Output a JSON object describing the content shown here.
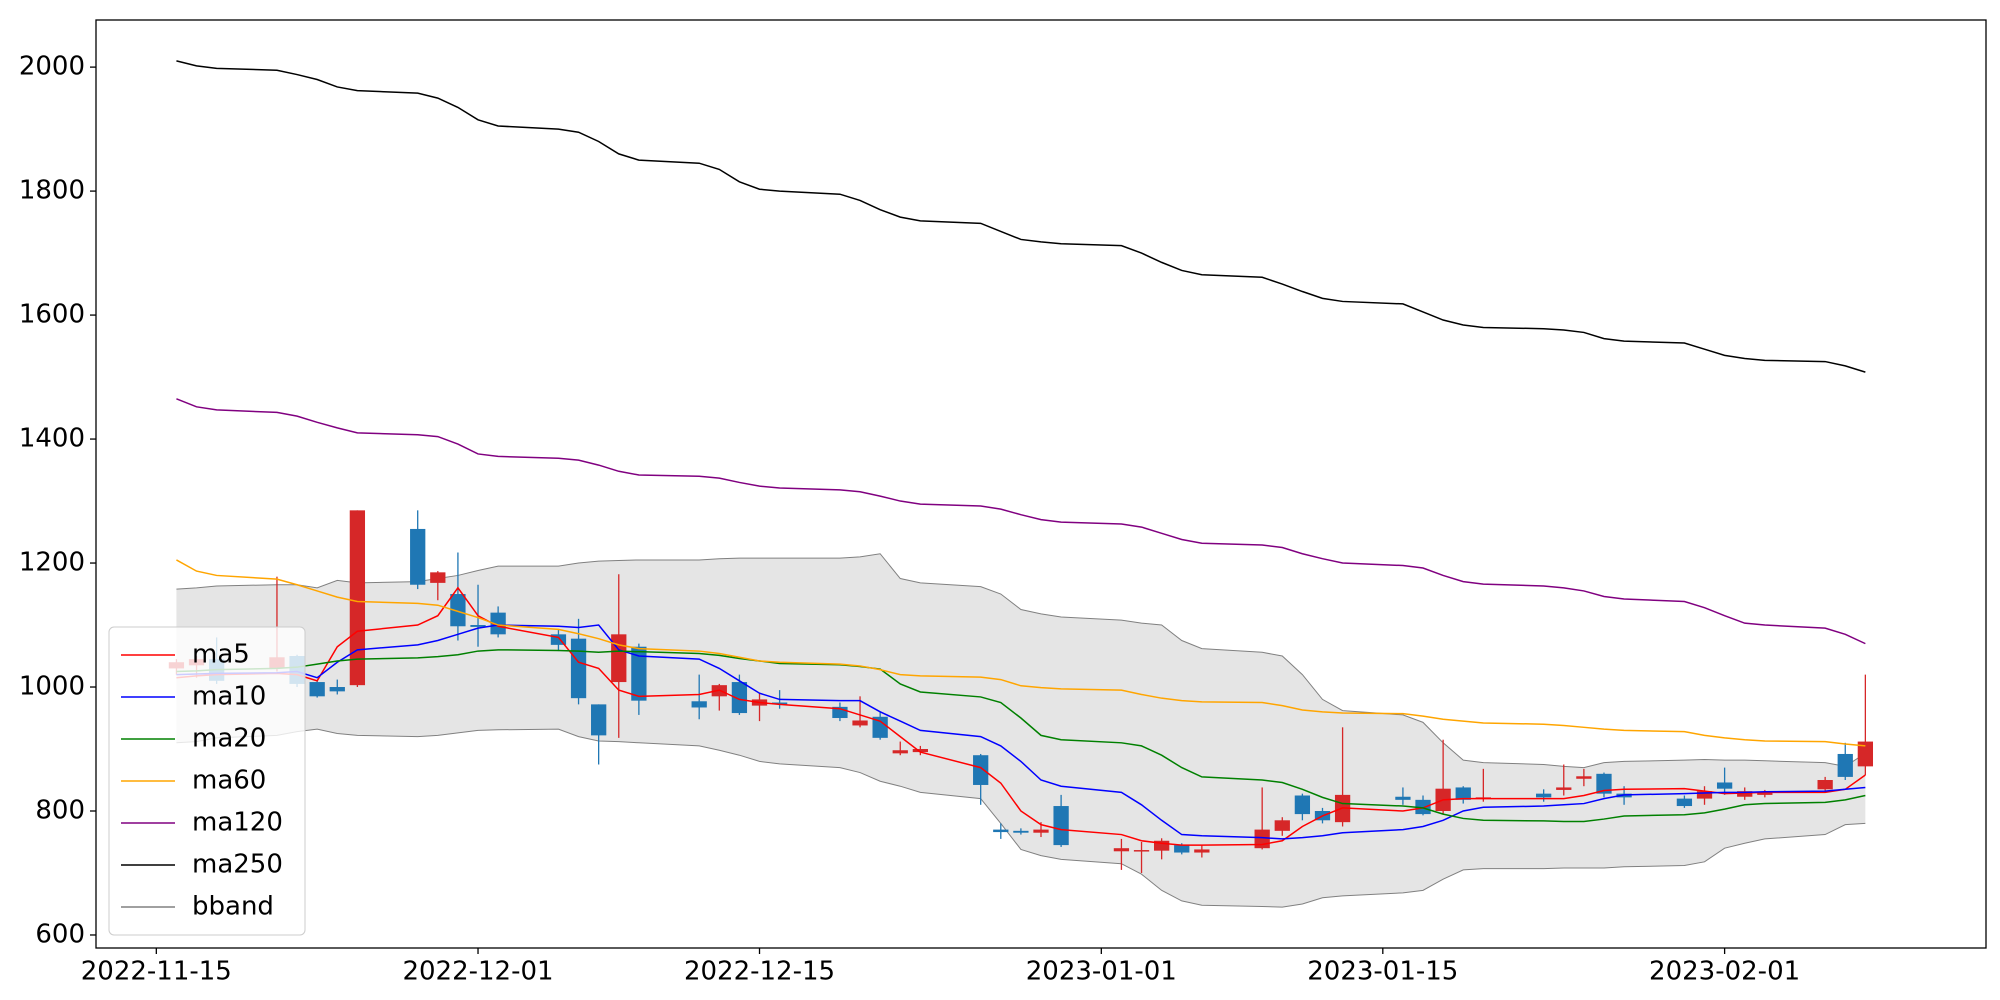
{
  "chart_data": {
    "type": "candlestick",
    "x": [
      "2022-11-16",
      "2022-11-17",
      "2022-11-18",
      "2022-11-21",
      "2022-11-22",
      "2022-11-23",
      "2022-11-24",
      "2022-11-25",
      "2022-11-28",
      "2022-11-29",
      "2022-11-30",
      "2022-12-01",
      "2022-12-02",
      "2022-12-05",
      "2022-12-06",
      "2022-12-07",
      "2022-12-08",
      "2022-12-09",
      "2022-12-12",
      "2022-12-13",
      "2022-12-14",
      "2022-12-15",
      "2022-12-16",
      "2022-12-19",
      "2022-12-20",
      "2022-12-21",
      "2022-12-22",
      "2022-12-23",
      "2022-12-26",
      "2022-12-27",
      "2022-12-28",
      "2022-12-29",
      "2022-12-30",
      "2023-01-02",
      "2023-01-03",
      "2023-01-04",
      "2023-01-05",
      "2023-01-06",
      "2023-01-09",
      "2023-01-10",
      "2023-01-11",
      "2023-01-12",
      "2023-01-13",
      "2023-01-16",
      "2023-01-17",
      "2023-01-18",
      "2023-01-19",
      "2023-01-20",
      "2023-01-23",
      "2023-01-24",
      "2023-01-25",
      "2023-01-26",
      "2023-01-27",
      "2023-01-30",
      "2023-01-31",
      "2023-02-01",
      "2023-02-02",
      "2023-02-03",
      "2023-02-06",
      "2023-02-07",
      "2023-02-08"
    ],
    "open": [
      1030,
      1035,
      1045,
      1030,
      1050,
      1008,
      1000,
      1003,
      1255,
      1168,
      1150,
      1100,
      1120,
      1085,
      1078,
      972,
      1008,
      1065,
      977,
      985,
      1008,
      970,
      975,
      968,
      938,
      952,
      893,
      895,
      890,
      770,
      768,
      765,
      808,
      735,
      735,
      736,
      745,
      733,
      740,
      768,
      825,
      800,
      782,
      823,
      818,
      800,
      838,
      820,
      828,
      834,
      852,
      860,
      828,
      820,
      820,
      846,
      823,
      826,
      835,
      892,
      872
    ],
    "high": [
      1045,
      1050,
      1080,
      1178,
      1052,
      1010,
      1012,
      1285,
      1285,
      1187,
      1217,
      1165,
      1130,
      1092,
      1110,
      972,
      1182,
      1070,
      1020,
      1005,
      1020,
      990,
      995,
      975,
      985,
      960,
      912,
      905,
      892,
      780,
      772,
      782,
      826,
      755,
      750,
      756,
      748,
      745,
      838,
      790,
      828,
      805,
      935,
      838,
      825,
      915,
      840,
      868,
      835,
      875,
      868,
      862,
      840,
      825,
      840,
      870,
      838,
      834,
      855,
      910,
      1020
    ],
    "low": [
      1020,
      1015,
      1005,
      1025,
      1000,
      983,
      988,
      1000,
      1158,
      1140,
      1075,
      1065,
      1080,
      1058,
      972,
      875,
      918,
      955,
      948,
      962,
      955,
      945,
      965,
      945,
      935,
      915,
      890,
      890,
      810,
      755,
      762,
      758,
      742,
      705,
      700,
      722,
      730,
      725,
      738,
      760,
      785,
      780,
      775,
      810,
      793,
      795,
      812,
      815,
      815,
      825,
      840,
      822,
      810,
      805,
      810,
      826,
      818,
      822,
      830,
      850,
      858
    ],
    "close": [
      1040,
      1045,
      1010,
      1048,
      1005,
      985,
      993,
      1285,
      1165,
      1185,
      1098,
      1097,
      1085,
      1068,
      982,
      922,
      1085,
      978,
      967,
      1003,
      958,
      980,
      972,
      950,
      946,
      918,
      898,
      900,
      842,
      766,
      765,
      770,
      745,
      740,
      737,
      752,
      733,
      738,
      770,
      785,
      795,
      785,
      826,
      818,
      795,
      836,
      818,
      822,
      822,
      838,
      856,
      828,
      822,
      808,
      832,
      836,
      832,
      829,
      850,
      855,
      912
    ],
    "up_color": "#d62728",
    "down_color": "#1f77b4",
    "series": [
      {
        "name": "ma5",
        "color": "#ff0000",
        "values": [
          1015,
          1018,
          1020,
          1022,
          1020,
          1010,
          1065,
          1090,
          1100,
          1115,
          1160,
          1115,
          1098,
          1080,
          1040,
          1030,
          995,
          985,
          988,
          995,
          980,
          975,
          972,
          965,
          955,
          945,
          920,
          895,
          870,
          845,
          800,
          778,
          770,
          762,
          752,
          748,
          745,
          745,
          746,
          752,
          775,
          792,
          805,
          800,
          805,
          818,
          820,
          820,
          820,
          820,
          825,
          833,
          835,
          836,
          832,
          828,
          829,
          830,
          830,
          835,
          858
        ]
      },
      {
        "name": "ma10",
        "color": "#0000ff",
        "values": [
          1020,
          1021,
          1022,
          1023,
          1025,
          1015,
          1040,
          1060,
          1068,
          1075,
          1085,
          1095,
          1100,
          1098,
          1096,
          1100,
          1060,
          1050,
          1045,
          1030,
          1010,
          990,
          980,
          978,
          978,
          960,
          945,
          930,
          920,
          905,
          880,
          850,
          840,
          830,
          810,
          785,
          762,
          760,
          757,
          755,
          757,
          760,
          765,
          770,
          775,
          785,
          800,
          806,
          808,
          810,
          812,
          820,
          826,
          828,
          829,
          830,
          830,
          831,
          832,
          835,
          838
        ]
      },
      {
        "name": "ma20",
        "color": "#008000",
        "values": [
          1025,
          1026,
          1028,
          1030,
          1032,
          1037,
          1042,
          1045,
          1047,
          1049,
          1052,
          1058,
          1060,
          1059,
          1058,
          1056,
          1058,
          1057,
          1054,
          1051,
          1046,
          1042,
          1038,
          1036,
          1033,
          1029,
          1005,
          992,
          984,
          975,
          950,
          922,
          915,
          910,
          905,
          890,
          870,
          855,
          850,
          846,
          835,
          822,
          812,
          808,
          805,
          795,
          788,
          785,
          784,
          783,
          783,
          787,
          792,
          794,
          797,
          803,
          810,
          812,
          814,
          818,
          825
        ]
      },
      {
        "name": "ma60",
        "color": "#ffa500",
        "values": [
          1205,
          1187,
          1180,
          1174,
          1165,
          1155,
          1145,
          1138,
          1135,
          1132,
          1122,
          1112,
          1100,
          1093,
          1086,
          1078,
          1068,
          1062,
          1058,
          1054,
          1048,
          1042,
          1040,
          1037,
          1034,
          1028,
          1020,
          1018,
          1016,
          1012,
          1002,
          999,
          997,
          995,
          988,
          982,
          978,
          976,
          975,
          970,
          963,
          960,
          958,
          957,
          953,
          948,
          945,
          942,
          940,
          938,
          935,
          932,
          930,
          928,
          922,
          918,
          915,
          913,
          912,
          908,
          905
        ]
      },
      {
        "name": "ma120",
        "color": "#800080",
        "values": [
          1465,
          1452,
          1447,
          1443,
          1437,
          1427,
          1418,
          1410,
          1407,
          1404,
          1392,
          1376,
          1372,
          1369,
          1366,
          1358,
          1348,
          1342,
          1340,
          1337,
          1330,
          1324,
          1321,
          1318,
          1315,
          1308,
          1300,
          1295,
          1292,
          1287,
          1278,
          1270,
          1266,
          1263,
          1258,
          1248,
          1238,
          1232,
          1229,
          1225,
          1215,
          1207,
          1200,
          1196,
          1192,
          1180,
          1170,
          1166,
          1163,
          1160,
          1155,
          1146,
          1142,
          1138,
          1128,
          1115,
          1103,
          1100,
          1095,
          1085,
          1070
        ]
      },
      {
        "name": "ma250",
        "color": "#000000",
        "values": [
          2010,
          2002,
          1998,
          1995,
          1988,
          1980,
          1968,
          1962,
          1958,
          1950,
          1935,
          1915,
          1905,
          1900,
          1895,
          1880,
          1860,
          1850,
          1845,
          1835,
          1815,
          1803,
          1800,
          1795,
          1785,
          1770,
          1758,
          1752,
          1748,
          1735,
          1722,
          1718,
          1715,
          1712,
          1700,
          1685,
          1672,
          1665,
          1661,
          1650,
          1638,
          1627,
          1622,
          1618,
          1605,
          1592,
          1584,
          1580,
          1578,
          1576,
          1572,
          1562,
          1558,
          1555,
          1545,
          1535,
          1530,
          1527,
          1525,
          1518,
          1508
        ]
      }
    ],
    "band": {
      "name": "bband",
      "color": "#808080",
      "fill": "#e5e5e5",
      "upper": [
        1158,
        1160,
        1163,
        1165,
        1165,
        1160,
        1172,
        1168,
        1170,
        1175,
        1180,
        1188,
        1195,
        1195,
        1200,
        1203,
        1204,
        1205,
        1205,
        1207,
        1208,
        1208,
        1208,
        1208,
        1210,
        1215,
        1175,
        1168,
        1162,
        1150,
        1125,
        1118,
        1113,
        1108,
        1103,
        1100,
        1075,
        1062,
        1056,
        1050,
        1020,
        980,
        962,
        955,
        943,
        910,
        882,
        878,
        875,
        872,
        870,
        878,
        880,
        882,
        883,
        882,
        882,
        881,
        878,
        872,
        893
      ],
      "lower": [
        910,
        912,
        918,
        922,
        928,
        932,
        925,
        922,
        920,
        922,
        926,
        930,
        931,
        932,
        920,
        913,
        912,
        910,
        905,
        898,
        890,
        880,
        876,
        870,
        862,
        848,
        840,
        830,
        820,
        780,
        738,
        728,
        722,
        715,
        698,
        672,
        655,
        648,
        646,
        645,
        650,
        660,
        663,
        668,
        672,
        690,
        705,
        707,
        707,
        708,
        708,
        708,
        710,
        712,
        718,
        740,
        748,
        755,
        762,
        778,
        780
      ]
    },
    "xlim": [
      "2022-11-12",
      "2023-02-14"
    ],
    "xticks": [
      "2022-11-15",
      "2022-12-01",
      "2022-12-15",
      "2023-01-01",
      "2023-01-15",
      "2023-02-01"
    ],
    "ylim": [
      579,
      2076
    ],
    "yticks": [
      600,
      800,
      1000,
      1200,
      1400,
      1600,
      1800,
      2000
    ],
    "legend": "lower left"
  }
}
